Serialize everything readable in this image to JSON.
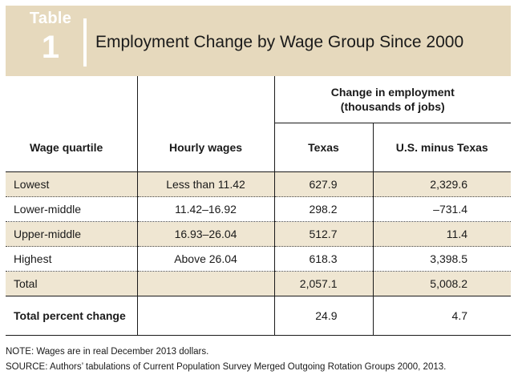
{
  "header": {
    "tag_word": "Table",
    "tag_number": "1",
    "title": "Employment Change by Wage Group Since 2000"
  },
  "table": {
    "group_header_line1": "Change in employment",
    "group_header_line2": "(thousands of jobs)",
    "columns": [
      "Wage quartile",
      "Hourly wages",
      "Texas",
      "U.S. minus Texas"
    ],
    "rows": [
      {
        "quartile": "Lowest",
        "wages": "Less than 11.42",
        "texas": "627.9",
        "us": "2,329.6"
      },
      {
        "quartile": "Lower-middle",
        "wages": "11.42–16.92",
        "texas": "298.2",
        "us": "–731.4"
      },
      {
        "quartile": "Upper-middle",
        "wages": "16.93–26.04",
        "texas": "512.7",
        "us": "11.4"
      },
      {
        "quartile": "Highest",
        "wages": "Above 26.04",
        "texas": "618.3",
        "us": "3,398.5"
      },
      {
        "quartile": "Total",
        "wages": "",
        "texas": "2,057.1",
        "us": "5,008.2"
      }
    ],
    "percent_row": {
      "label": "Total percent change",
      "texas": "24.9",
      "us": "4.7"
    }
  },
  "notes": [
    "NOTE: Wages are in real December 2013 dollars.",
    "SOURCE: Authors’ tabulations of Current Population Survey Merged Outgoing Rotation Groups 2000, 2013."
  ]
}
